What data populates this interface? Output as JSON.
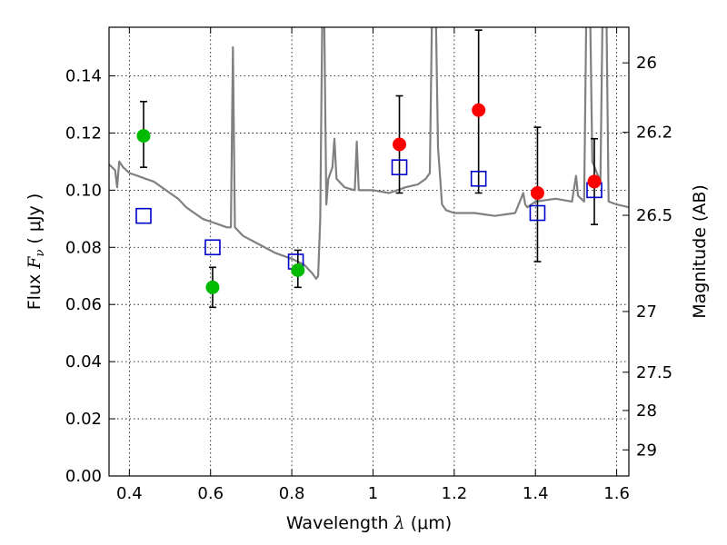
{
  "chart_data": {
    "type": "scatter",
    "xlabel": {
      "pre": "Wavelength  ",
      "sym": "λ",
      "post": " (μm)"
    },
    "ylabel": {
      "pre": "Flux  ",
      "sym": "F",
      "sub": "ν",
      "post": "  ( μJy )"
    },
    "y2label": "Magnitude (AB)",
    "xlim": [
      0.35,
      1.63
    ],
    "ylim": [
      0.0,
      0.157
    ],
    "grid": true,
    "x_ticks": [
      {
        "v": 0.4,
        "label": "0.4"
      },
      {
        "v": 0.6,
        "label": "0.6"
      },
      {
        "v": 0.8,
        "label": "0.8"
      },
      {
        "v": 1.0,
        "label": "1"
      },
      {
        "v": 1.2,
        "label": "1.2"
      },
      {
        "v": 1.4,
        "label": "1.4"
      },
      {
        "v": 1.6,
        "label": "1.6"
      }
    ],
    "y_ticks": [
      {
        "v": 0.0,
        "label": "0.00"
      },
      {
        "v": 0.02,
        "label": "0.02"
      },
      {
        "v": 0.04,
        "label": "0.04"
      },
      {
        "v": 0.06,
        "label": "0.06"
      },
      {
        "v": 0.08,
        "label": "0.08"
      },
      {
        "v": 0.1,
        "label": "0.10"
      },
      {
        "v": 0.12,
        "label": "0.12"
      },
      {
        "v": 0.14,
        "label": "0.14"
      }
    ],
    "y2_ticks": [
      {
        "mag": 26,
        "label": "26"
      },
      {
        "mag": 26.2,
        "label": "26.2"
      },
      {
        "mag": 26.5,
        "label": "26.5"
      },
      {
        "mag": 27,
        "label": "27"
      },
      {
        "mag": 27.5,
        "label": "27.5"
      },
      {
        "mag": 28,
        "label": "28"
      },
      {
        "mag": 29,
        "label": "29"
      }
    ],
    "colors": {
      "spectrum": "#808080",
      "green": "#00bb00",
      "red": "#ff0000",
      "model": "#0000cc",
      "errorbar": "#000000"
    },
    "spectrum": [
      [
        0.35,
        0.109
      ],
      [
        0.365,
        0.107
      ],
      [
        0.37,
        0.101
      ],
      [
        0.375,
        0.11
      ],
      [
        0.385,
        0.108
      ],
      [
        0.4,
        0.106
      ],
      [
        0.42,
        0.105
      ],
      [
        0.44,
        0.104
      ],
      [
        0.46,
        0.103
      ],
      [
        0.48,
        0.101
      ],
      [
        0.5,
        0.099
      ],
      [
        0.52,
        0.097
      ],
      [
        0.54,
        0.094
      ],
      [
        0.56,
        0.092
      ],
      [
        0.58,
        0.09
      ],
      [
        0.6,
        0.089
      ],
      [
        0.62,
        0.088
      ],
      [
        0.64,
        0.087
      ],
      [
        0.65,
        0.087
      ],
      [
        0.655,
        0.15
      ],
      [
        0.66,
        0.087
      ],
      [
        0.68,
        0.084
      ],
      [
        0.72,
        0.081
      ],
      [
        0.76,
        0.078
      ],
      [
        0.8,
        0.076
      ],
      [
        0.83,
        0.074
      ],
      [
        0.85,
        0.071
      ],
      [
        0.86,
        0.069
      ],
      [
        0.865,
        0.07
      ],
      [
        0.87,
        0.09
      ],
      [
        0.875,
        0.16
      ],
      [
        0.88,
        0.16
      ],
      [
        0.885,
        0.095
      ],
      [
        0.89,
        0.104
      ],
      [
        0.9,
        0.108
      ],
      [
        0.905,
        0.118
      ],
      [
        0.91,
        0.104
      ],
      [
        0.93,
        0.101
      ],
      [
        0.955,
        0.1
      ],
      [
        0.96,
        0.117
      ],
      [
        0.965,
        0.1
      ],
      [
        1.0,
        0.1
      ],
      [
        1.04,
        0.099
      ],
      [
        1.08,
        0.101
      ],
      [
        1.11,
        0.102
      ],
      [
        1.13,
        0.104
      ],
      [
        1.14,
        0.106
      ],
      [
        1.145,
        0.16
      ],
      [
        1.155,
        0.16
      ],
      [
        1.16,
        0.115
      ],
      [
        1.17,
        0.095
      ],
      [
        1.18,
        0.093
      ],
      [
        1.2,
        0.092
      ],
      [
        1.25,
        0.092
      ],
      [
        1.3,
        0.091
      ],
      [
        1.35,
        0.092
      ],
      [
        1.37,
        0.099
      ],
      [
        1.375,
        0.095
      ],
      [
        1.38,
        0.094
      ],
      [
        1.4,
        0.096
      ],
      [
        1.45,
        0.097
      ],
      [
        1.49,
        0.096
      ],
      [
        1.5,
        0.105
      ],
      [
        1.505,
        0.098
      ],
      [
        1.52,
        0.096
      ],
      [
        1.525,
        0.16
      ],
      [
        1.535,
        0.16
      ],
      [
        1.54,
        0.11
      ],
      [
        1.56,
        0.103
      ],
      [
        1.565,
        0.16
      ],
      [
        1.575,
        0.16
      ],
      [
        1.58,
        0.096
      ],
      [
        1.6,
        0.095
      ],
      [
        1.63,
        0.094
      ]
    ],
    "series": [
      {
        "points": [
          {
            "x": 0.435,
            "y": 0.119,
            "lo": 0.108,
            "hi": 0.131
          },
          {
            "x": 0.605,
            "y": 0.066,
            "lo": 0.059,
            "hi": 0.073
          },
          {
            "x": 0.815,
            "y": 0.072,
            "lo": 0.066,
            "hi": 0.079
          }
        ]
      },
      {
        "points": [
          {
            "x": 1.065,
            "y": 0.116,
            "lo": 0.099,
            "hi": 0.133
          },
          {
            "x": 1.26,
            "y": 0.128,
            "lo": 0.099,
            "hi": 0.156
          },
          {
            "x": 1.405,
            "y": 0.099,
            "lo": 0.075,
            "hi": 0.122
          },
          {
            "x": 1.545,
            "y": 0.103,
            "lo": 0.088,
            "hi": 0.118
          }
        ]
      },
      {
        "points": [
          {
            "x": 0.435,
            "y": 0.091
          },
          {
            "x": 0.605,
            "y": 0.08
          },
          {
            "x": 0.81,
            "y": 0.075
          },
          {
            "x": 1.065,
            "y": 0.108
          },
          {
            "x": 1.26,
            "y": 0.104
          },
          {
            "x": 1.405,
            "y": 0.092
          },
          {
            "x": 1.545,
            "y": 0.1
          }
        ]
      }
    ]
  }
}
